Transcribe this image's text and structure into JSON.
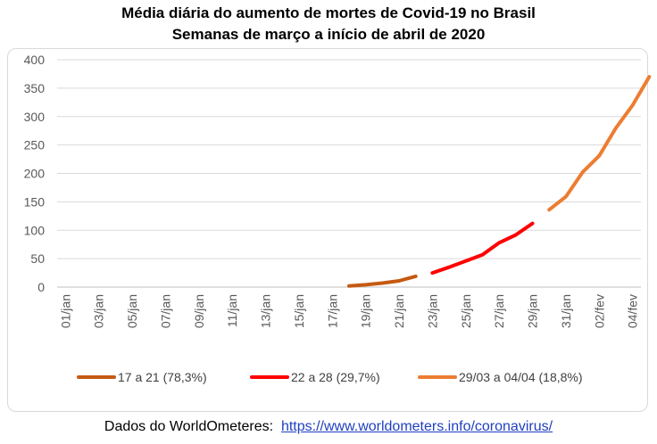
{
  "chart_data": {
    "type": "line",
    "title": "Média diária do aumento de mortes de Covid-19 no Brasil",
    "subtitle": "Semanas de março a início de abril de 2020",
    "ylim": [
      0,
      400
    ],
    "y_ticks": [
      0,
      50,
      100,
      150,
      200,
      250,
      300,
      350,
      400
    ],
    "x_tick_labels": [
      "01/jan",
      "03/jan",
      "05/jan",
      "07/jan",
      "09/jan",
      "11/jan",
      "13/jan",
      "15/jan",
      "17/jan",
      "19/jan",
      "21/jan",
      "23/jan",
      "25/jan",
      "27/jan",
      "29/jan",
      "31/jan",
      "02/fev",
      "04/fev"
    ],
    "grid": true,
    "legend_position": "bottom",
    "series": [
      {
        "name": "17 a 21 (78,3%)",
        "color": "#c55a11",
        "start_index": 17,
        "values": [
          2,
          4,
          7,
          11,
          19
        ]
      },
      {
        "name": "22 a 28 (29,7%)",
        "color": "#ff0000",
        "start_index": 22,
        "values": [
          25,
          35,
          46,
          57,
          78,
          92,
          112
        ]
      },
      {
        "name": "29/03 a 04/04 (18,8%)",
        "color": "#ed7d31",
        "start_index": 29,
        "values": [
          136,
          159,
          202,
          231,
          280,
          320,
          370
        ]
      }
    ]
  },
  "source": {
    "text": "Dados do WorldOmeteres:",
    "link": "https://www.worldometers.info/coronavirus/"
  }
}
